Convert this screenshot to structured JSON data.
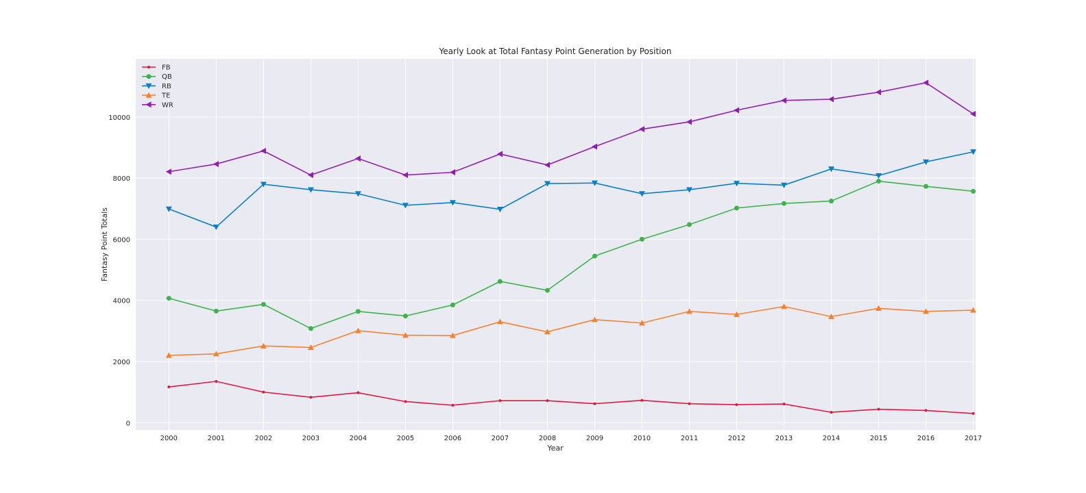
{
  "chart_data": {
    "type": "line",
    "title": "Yearly Look at Total Fantasy Point Generation by Position",
    "xlabel": "Year",
    "ylabel": "Fantasy Point Totals",
    "x": [
      2000,
      2001,
      2002,
      2003,
      2004,
      2005,
      2006,
      2007,
      2008,
      2009,
      2010,
      2011,
      2012,
      2013,
      2014,
      2015,
      2016,
      2017
    ],
    "xlim": [
      1999.3,
      2017.05
    ],
    "ylim": [
      -240,
      11900
    ],
    "yticks": [
      0,
      2000,
      4000,
      6000,
      8000,
      10000
    ],
    "grid": true,
    "legend": "top-left",
    "series": [
      {
        "name": "FB",
        "color": "#e0183e",
        "marker": "point",
        "values": [
          1170,
          1350,
          1000,
          830,
          980,
          690,
          570,
          720,
          720,
          620,
          730,
          620,
          590,
          610,
          340,
          440,
          400,
          300
        ]
      },
      {
        "name": "QB",
        "color": "#3cb44b",
        "marker": "circle",
        "values": [
          4070,
          3650,
          3870,
          3080,
          3640,
          3490,
          3850,
          4620,
          4330,
          5450,
          6000,
          6480,
          7020,
          7170,
          7250,
          7900,
          7730,
          7570
        ]
      },
      {
        "name": "RB",
        "color": "#0a7fc7",
        "marker": "triangle-down",
        "values": [
          6990,
          6400,
          7800,
          7620,
          7490,
          7110,
          7200,
          6980,
          7820,
          7840,
          7490,
          7620,
          7830,
          7770,
          8300,
          8080,
          8530,
          8860
        ]
      },
      {
        "name": "TE",
        "color": "#f58231",
        "marker": "triangle-up",
        "values": [
          2200,
          2250,
          2510,
          2460,
          3010,
          2860,
          2850,
          3300,
          2970,
          3370,
          3260,
          3640,
          3540,
          3800,
          3470,
          3740,
          3640,
          3680
        ]
      },
      {
        "name": "WR",
        "color": "#911eb4",
        "marker": "triangle-left",
        "values": [
          8210,
          8460,
          8890,
          8100,
          8640,
          8100,
          8190,
          8790,
          8430,
          9030,
          9600,
          9840,
          10220,
          10540,
          10580,
          10810,
          11120,
          10100
        ]
      }
    ]
  }
}
